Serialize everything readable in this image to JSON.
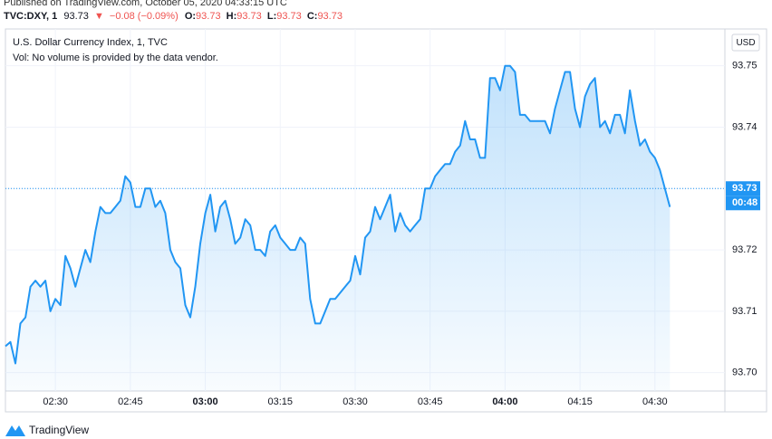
{
  "header": {
    "published": "Published on TradingView.com, October 05, 2020 04:33:15 UTC",
    "symbol": "TVC:DXY, 1",
    "price": "93.73",
    "arrow": "▼",
    "change": "−0.08 (−0.09%)",
    "ohlc": [
      {
        "label": "O:",
        "value": "93.73"
      },
      {
        "label": "H:",
        "value": "93.73"
      },
      {
        "label": "L:",
        "value": "93.73"
      },
      {
        "label": "C:",
        "value": "93.73"
      }
    ]
  },
  "footer": {
    "brand": "TradingView"
  },
  "chart_data": {
    "type": "area",
    "title": "U.S. Dollar Currency Index, 1, TVC",
    "subtitle": "Vol: No volume is provided by the data vendor.",
    "currency": "USD",
    "color": "#2196f3",
    "grid": true,
    "x": [
      "02:20",
      "02:21",
      "02:22",
      "02:23",
      "02:24",
      "02:25",
      "02:26",
      "02:27",
      "02:28",
      "02:29",
      "02:30",
      "02:31",
      "02:32",
      "02:33",
      "02:34",
      "02:35",
      "02:36",
      "02:37",
      "02:38",
      "02:39",
      "02:40",
      "02:41",
      "02:42",
      "02:43",
      "02:44",
      "02:45",
      "02:46",
      "02:47",
      "02:48",
      "02:49",
      "02:50",
      "02:51",
      "02:52",
      "02:53",
      "02:54",
      "02:55",
      "02:56",
      "02:57",
      "02:58",
      "02:59",
      "03:00",
      "03:01",
      "03:02",
      "03:03",
      "03:04",
      "03:05",
      "03:06",
      "03:07",
      "03:08",
      "03:09",
      "03:10",
      "03:11",
      "03:12",
      "03:13",
      "03:14",
      "03:15",
      "03:16",
      "03:17",
      "03:18",
      "03:19",
      "03:20",
      "03:21",
      "03:22",
      "03:23",
      "03:24",
      "03:25",
      "03:26",
      "03:27",
      "03:28",
      "03:29",
      "03:30",
      "03:31",
      "03:32",
      "03:33",
      "03:34",
      "03:35",
      "03:36",
      "03:37",
      "03:38",
      "03:39",
      "03:40",
      "03:41",
      "03:42",
      "03:43",
      "03:44",
      "03:45",
      "03:46",
      "03:47",
      "03:48",
      "03:49",
      "03:50",
      "03:51",
      "03:52",
      "03:53",
      "03:54",
      "03:55",
      "03:56",
      "03:57",
      "03:58",
      "03:59",
      "04:00",
      "04:01",
      "04:02",
      "04:03",
      "04:04",
      "04:05",
      "04:06",
      "04:07",
      "04:08",
      "04:09",
      "04:10",
      "04:11",
      "04:12",
      "04:13",
      "04:14",
      "04:15",
      "04:16",
      "04:17",
      "04:18",
      "04:19",
      "04:20",
      "04:21",
      "04:22",
      "04:23",
      "04:24",
      "04:25",
      "04:26",
      "04:27",
      "04:28",
      "04:29",
      "04:30",
      "04:31",
      "04:32",
      "04:33"
    ],
    "values": [
      93.7043,
      93.705,
      93.7015,
      93.708,
      93.709,
      93.714,
      93.715,
      93.714,
      93.715,
      93.71,
      93.712,
      93.711,
      93.719,
      93.717,
      93.714,
      93.717,
      93.72,
      93.718,
      93.723,
      93.727,
      93.726,
      93.726,
      93.727,
      93.728,
      93.732,
      93.731,
      93.727,
      93.727,
      93.73,
      93.73,
      93.727,
      93.728,
      93.726,
      93.72,
      93.718,
      93.717,
      93.711,
      93.709,
      93.714,
      93.721,
      93.726,
      93.729,
      93.723,
      93.727,
      93.728,
      93.725,
      93.721,
      93.722,
      93.725,
      93.724,
      93.72,
      93.72,
      93.719,
      93.723,
      93.724,
      93.722,
      93.721,
      93.72,
      93.72,
      93.722,
      93.721,
      93.712,
      93.708,
      93.708,
      93.71,
      93.712,
      93.712,
      93.713,
      93.714,
      93.715,
      93.719,
      93.716,
      93.722,
      93.723,
      93.727,
      93.725,
      93.727,
      93.729,
      93.723,
      93.726,
      93.724,
      93.723,
      93.724,
      93.725,
      93.73,
      93.73,
      93.732,
      93.733,
      93.734,
      93.734,
      93.736,
      93.737,
      93.741,
      93.738,
      93.738,
      93.735,
      93.735,
      93.748,
      93.748,
      93.746,
      93.75,
      93.75,
      93.749,
      93.742,
      93.742,
      93.741,
      93.741,
      93.741,
      93.741,
      93.739,
      93.743,
      93.746,
      93.749,
      93.749,
      93.743,
      93.74,
      93.745,
      93.747,
      93.748,
      93.74,
      93.741,
      93.739,
      93.742,
      93.742,
      93.739,
      93.746,
      93.741,
      93.737,
      93.738,
      93.736,
      93.735,
      93.733,
      93.73,
      93.727
    ],
    "xlim": [
      "02:20",
      "04:44"
    ],
    "xticks": [
      "02:30",
      "02:45",
      "03:00",
      "03:15",
      "03:30",
      "03:45",
      "04:00",
      "04:15",
      "04:30"
    ],
    "xticks_bold": [
      "03:00",
      "04:00"
    ],
    "ylim": [
      93.697,
      93.756
    ],
    "yticks": [
      {
        "value": 93.7,
        "label": "93.70"
      },
      93.71,
      93.72,
      93.73,
      93.74,
      93.75
    ],
    "last_price": 93.73,
    "countdown": "00:48"
  }
}
